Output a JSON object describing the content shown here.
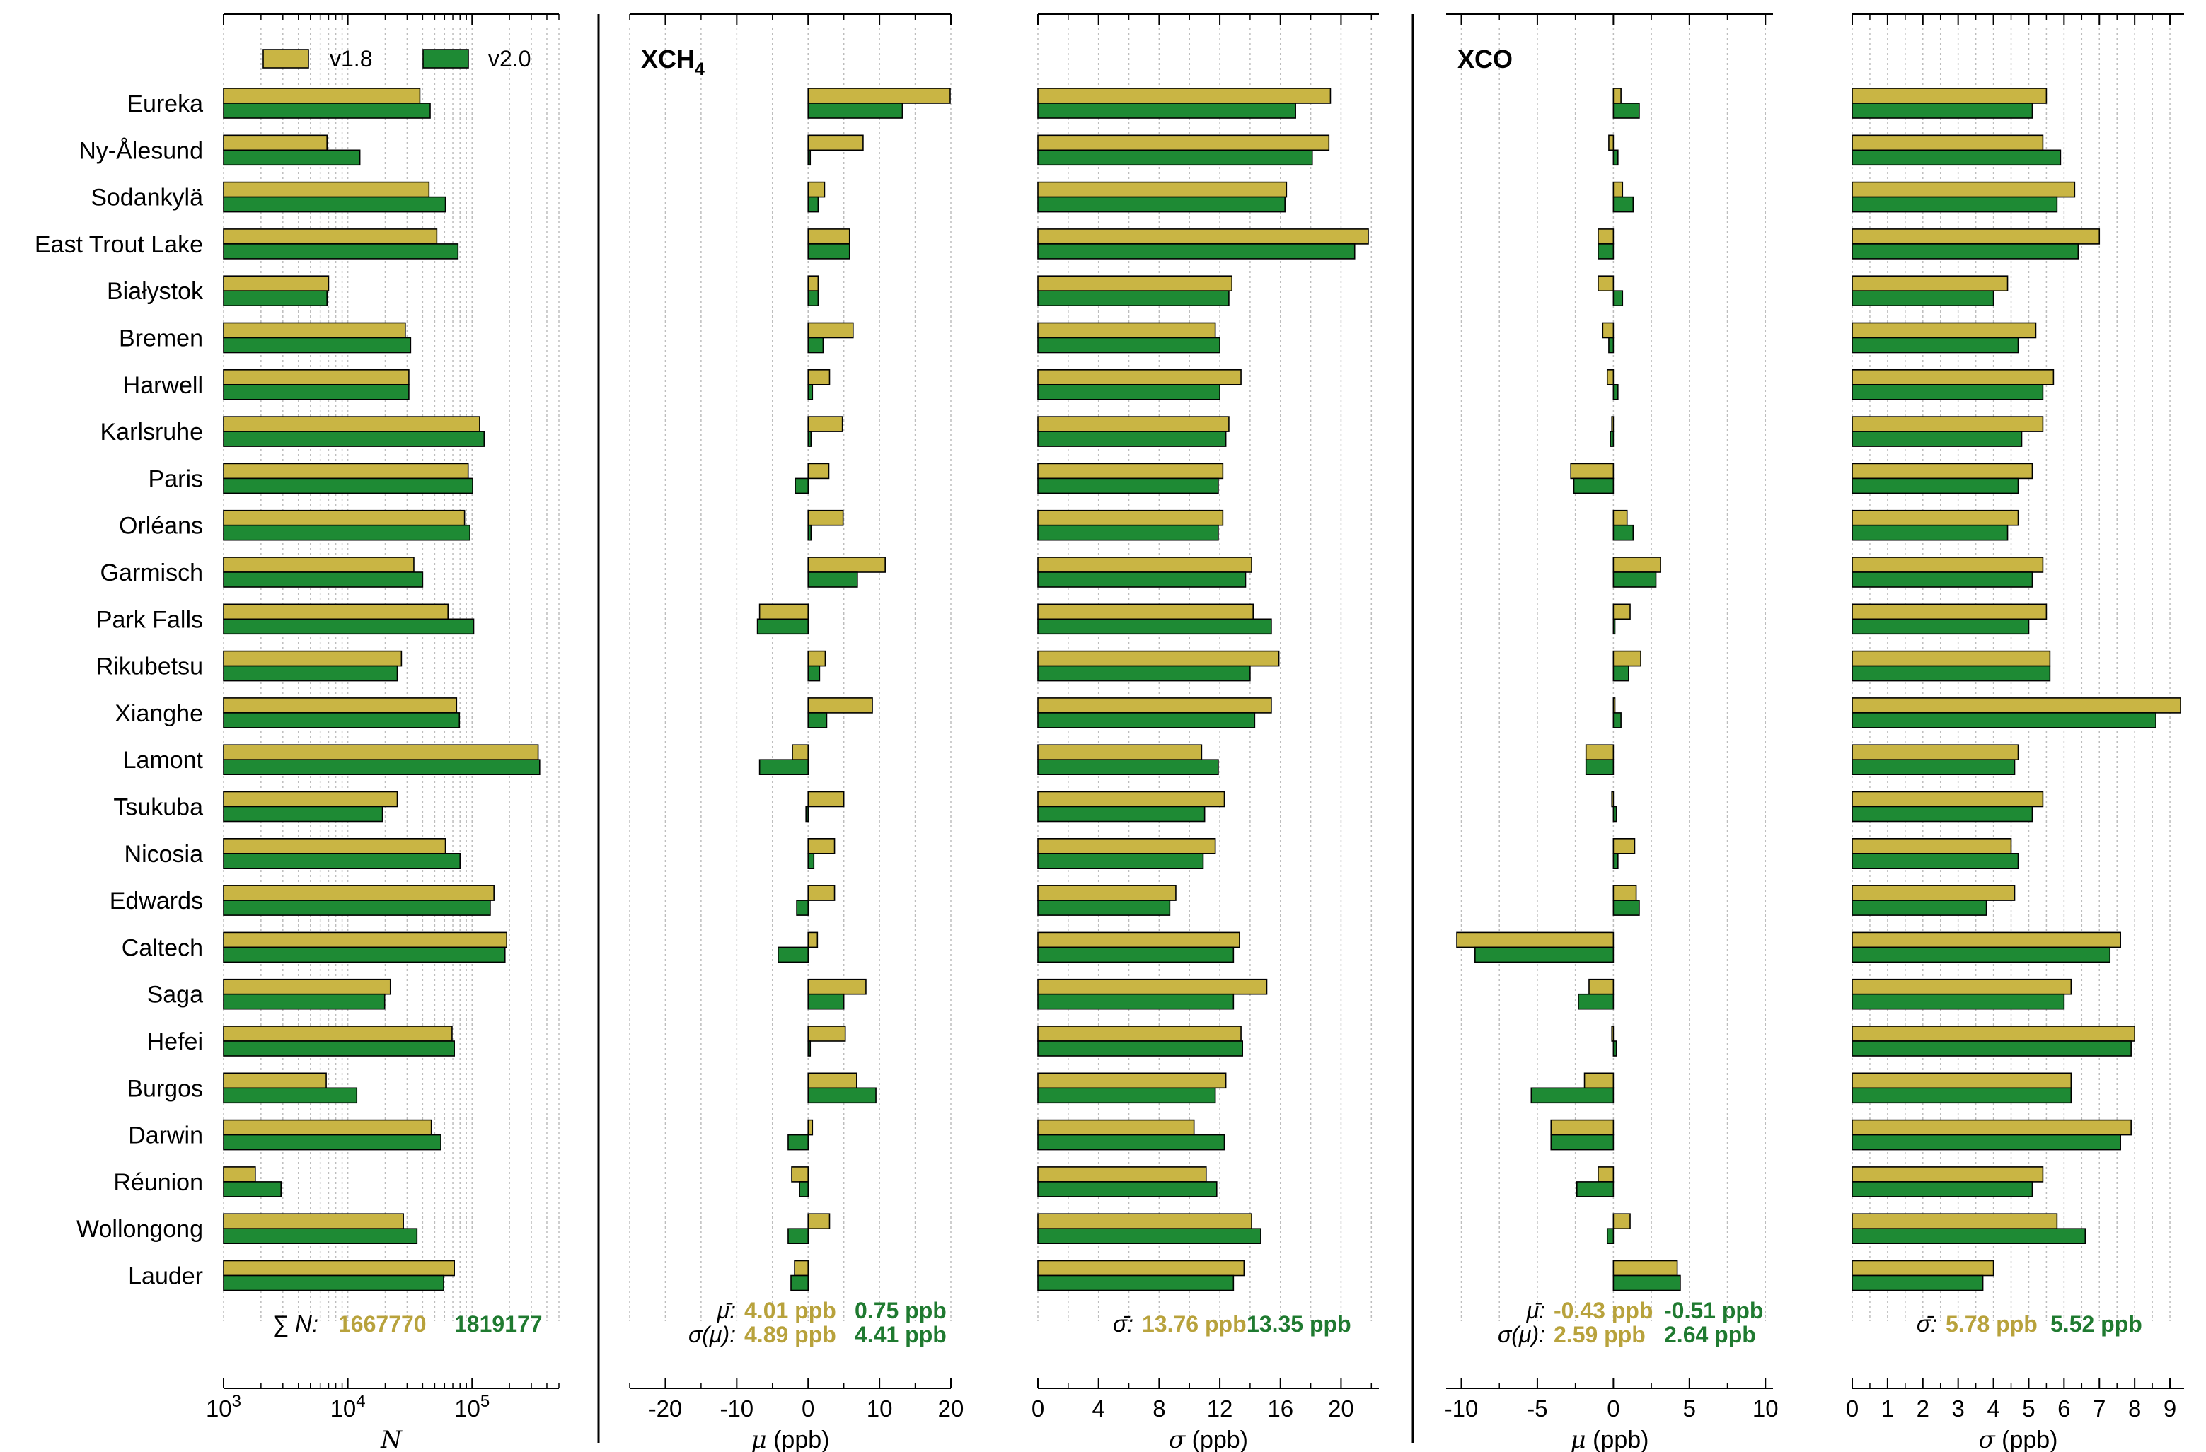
{
  "stations": [
    "Eureka",
    "Ny-Ålesund",
    "Sodankylä",
    "East Trout Lake",
    "Białystok",
    "Bremen",
    "Harwell",
    "Karlsruhe",
    "Paris",
    "Orléans",
    "Garmisch",
    "Park Falls",
    "Rikubetsu",
    "Xianghe",
    "Lamont",
    "Tsukuba",
    "Nicosia",
    "Edwards",
    "Caltech",
    "Saga",
    "Hefei",
    "Burgos",
    "Darwin",
    "Réunion",
    "Wollongong",
    "Lauder"
  ],
  "legend": {
    "v18": "v1.8",
    "v20": "v2.0"
  },
  "colors": {
    "v18": "#c9b544",
    "v20": "#1e8a34",
    "edge": "#000000",
    "v18_text": "#b8a23c",
    "v20_text": "#1f7a30",
    "grid": "#bdbdbd"
  },
  "panel_titles": {
    "xch4": "XCH4",
    "xco": "XCO"
  },
  "chart_data": [
    {
      "type": "bar",
      "orientation": "horizontal",
      "xscale": "log",
      "xlim": [
        1000,
        500000
      ],
      "xlabel": "N",
      "xticks": [
        "10^3",
        "10^4",
        "10^5"
      ],
      "series": [
        {
          "name": "v1.8",
          "values": [
            38000,
            6800,
            45000,
            52000,
            7000,
            29000,
            31000,
            115000,
            93000,
            87000,
            34000,
            64000,
            27000,
            75000,
            340000,
            25000,
            61000,
            150000,
            190000,
            22000,
            69000,
            6700,
            47000,
            1800,
            28000,
            72000
          ]
        },
        {
          "name": "v2.0",
          "values": [
            46000,
            12500,
            61000,
            77000,
            6800,
            32000,
            31000,
            125000,
            101000,
            96000,
            40000,
            103000,
            25000,
            79000,
            350000,
            19000,
            80000,
            140000,
            184000,
            19800,
            72000,
            11800,
            56000,
            2900,
            36000,
            59000
          ]
        }
      ],
      "annotation": {
        "label": "∑ N:",
        "v18": "1667770",
        "v20": "1819177"
      }
    },
    {
      "type": "bar",
      "orientation": "horizontal",
      "title": "XCH4",
      "xlim": [
        -25,
        20
      ],
      "xlabel": "μ (ppb)",
      "xticks": [
        -20,
        -10,
        0,
        10,
        20
      ],
      "series": [
        {
          "name": "v1.8",
          "values": [
            19.9,
            7.7,
            2.3,
            5.8,
            1.4,
            6.3,
            3.0,
            4.8,
            2.9,
            4.9,
            10.8,
            -6.8,
            2.4,
            9.0,
            -2.2,
            5.0,
            3.7,
            3.7,
            1.3,
            8.1,
            5.2,
            6.8,
            0.6,
            -2.3,
            3.0,
            -1.9
          ]
        },
        {
          "name": "v2.0",
          "values": [
            13.2,
            0.3,
            1.4,
            5.8,
            1.4,
            2.1,
            0.6,
            0.4,
            -1.8,
            0.4,
            6.9,
            -7.1,
            1.6,
            2.6,
            -6.8,
            -0.3,
            0.8,
            -1.6,
            -4.2,
            5.0,
            0.3,
            9.5,
            -2.8,
            -1.2,
            -2.8,
            -2.4
          ]
        }
      ],
      "annotation": {
        "mu_label": "μ̄:",
        "mu_v18": "4.01 ppb",
        "mu_v20": "0.75 ppb",
        "sd_label": "σ(μ):",
        "sd_v18": "4.89 ppb",
        "sd_v20": "4.41 ppb"
      }
    },
    {
      "type": "bar",
      "orientation": "horizontal",
      "xlim": [
        0,
        22.5
      ],
      "xlabel": "σ (ppb)",
      "xticks": [
        0,
        4,
        8,
        12,
        16,
        20
      ],
      "series": [
        {
          "name": "v1.8",
          "values": [
            19.3,
            19.2,
            16.4,
            21.8,
            12.8,
            11.7,
            13.4,
            12.6,
            12.2,
            12.2,
            14.1,
            14.2,
            15.9,
            15.4,
            10.8,
            12.3,
            11.7,
            9.1,
            13.3,
            15.1,
            13.4,
            12.4,
            10.3,
            11.1,
            14.1,
            13.6
          ]
        },
        {
          "name": "v2.0",
          "values": [
            17.0,
            18.1,
            16.3,
            20.9,
            12.6,
            12.0,
            12.0,
            12.4,
            11.9,
            11.9,
            13.7,
            15.4,
            14.0,
            14.3,
            11.9,
            11.0,
            10.9,
            8.7,
            12.9,
            12.9,
            13.5,
            11.7,
            12.3,
            11.8,
            14.7,
            12.9
          ]
        }
      ],
      "annotation": {
        "label": "σ̄:",
        "v18": "13.76 ppb",
        "v20": "13.35 ppb"
      }
    },
    {
      "type": "bar",
      "orientation": "horizontal",
      "title": "XCO",
      "xlim": [
        -11,
        10.5
      ],
      "xlabel": "μ (ppb)",
      "xticks": [
        -10,
        -5,
        0,
        5,
        10
      ],
      "series": [
        {
          "name": "v1.8",
          "values": [
            0.5,
            -0.3,
            0.6,
            -1.0,
            -1.0,
            -0.7,
            -0.4,
            -0.1,
            -2.8,
            0.9,
            3.1,
            1.1,
            1.8,
            0.1,
            -1.8,
            -0.1,
            1.4,
            1.5,
            -10.3,
            -1.6,
            -0.1,
            -1.9,
            -4.1,
            -1.0,
            1.1,
            4.2
          ]
        },
        {
          "name": "v2.0",
          "values": [
            1.7,
            0.3,
            1.3,
            -1.0,
            0.6,
            -0.3,
            0.3,
            -0.2,
            -2.6,
            1.3,
            2.8,
            0.1,
            1.0,
            0.5,
            -1.8,
            0.2,
            0.3,
            1.7,
            -9.1,
            -2.3,
            0.2,
            -5.4,
            -4.1,
            -2.4,
            -0.4,
            4.4
          ]
        }
      ],
      "annotation": {
        "mu_label": "μ̄:",
        "mu_v18": "-0.43 ppb",
        "mu_v20": "-0.51 ppb",
        "sd_label": "σ(μ):",
        "sd_v18": "2.59 ppb",
        "sd_v20": "2.64 ppb"
      }
    },
    {
      "type": "bar",
      "orientation": "horizontal",
      "xlim": [
        0,
        9.4
      ],
      "xlabel": "σ (ppb)",
      "xticks": [
        0,
        1,
        2,
        3,
        4,
        5,
        6,
        7,
        8,
        9
      ],
      "series": [
        {
          "name": "v1.8",
          "values": [
            5.5,
            5.4,
            6.3,
            7.0,
            4.4,
            5.2,
            5.7,
            5.4,
            5.1,
            4.7,
            5.4,
            5.5,
            5.6,
            9.3,
            4.7,
            5.4,
            4.5,
            4.6,
            7.6,
            6.2,
            8.0,
            6.2,
            7.9,
            5.4,
            5.8,
            4.0
          ]
        },
        {
          "name": "v2.0",
          "values": [
            5.1,
            5.9,
            5.8,
            6.4,
            4.0,
            4.7,
            5.4,
            4.8,
            4.7,
            4.4,
            5.1,
            5.0,
            5.6,
            8.6,
            4.6,
            5.1,
            4.7,
            3.8,
            7.3,
            6.0,
            7.9,
            6.2,
            7.6,
            5.1,
            6.6,
            3.7
          ]
        }
      ],
      "annotation": {
        "label": "σ̄:",
        "v18": "5.78 ppb",
        "v20": "5.52 ppb"
      }
    }
  ]
}
